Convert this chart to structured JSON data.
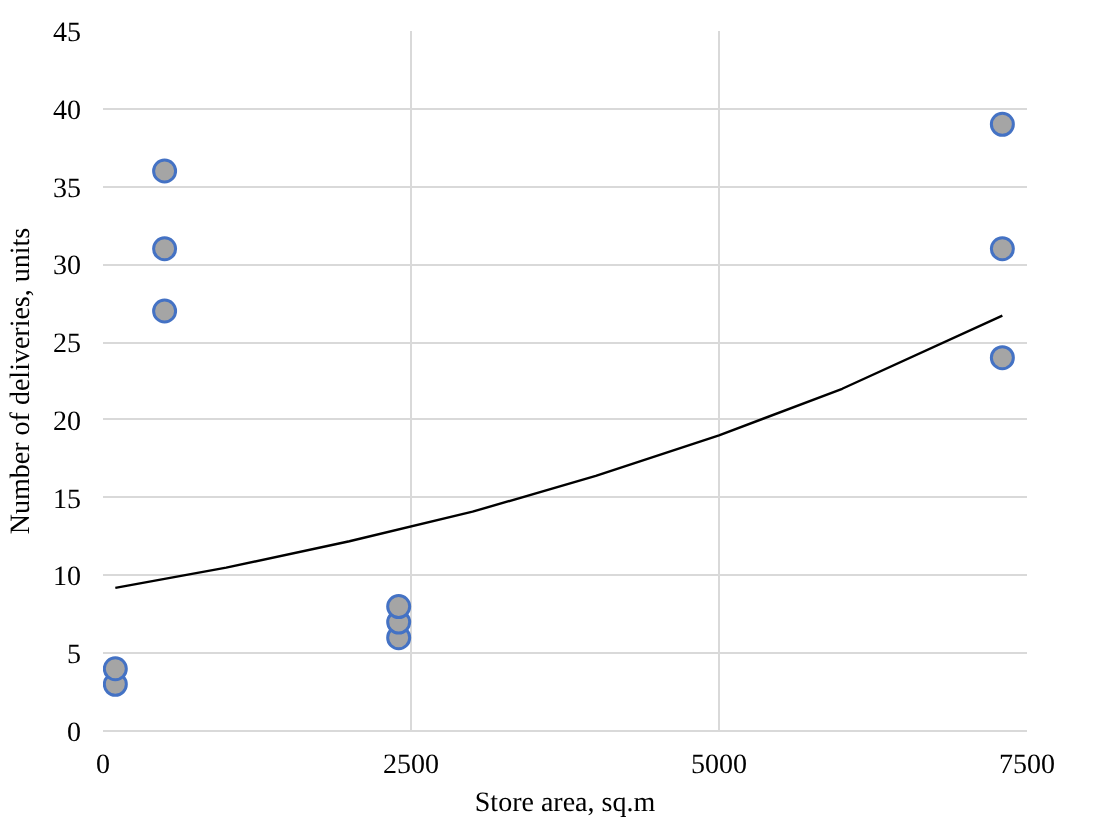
{
  "chart_data": {
    "type": "scatter",
    "xlabel": "Store area, sq.m",
    "ylabel": "Number of deliveries, units",
    "xlim": [
      0,
      7500
    ],
    "xticks": [
      0,
      2500,
      5000,
      7500
    ],
    "ylim": [
      0,
      45
    ],
    "yticks": [
      0,
      5,
      10,
      15,
      20,
      25,
      30,
      35,
      40,
      45
    ],
    "grid": true,
    "series": [
      {
        "marker": "circle",
        "color": "#a5a5a5",
        "x": [
          100,
          100,
          500,
          500,
          500,
          2400,
          2400,
          2400,
          7300,
          7300,
          7300
        ],
        "values": [
          3,
          4,
          27,
          31,
          36,
          6,
          7,
          8,
          24,
          31,
          39
        ]
      },
      {
        "type": "line",
        "color": "#000000",
        "x": [
          100,
          1000,
          2000,
          3000,
          4000,
          5000,
          6000,
          7300
        ],
        "values": [
          9.2,
          10.5,
          12.2,
          14.1,
          16.4,
          19.0,
          22.0,
          26.7
        ]
      }
    ]
  }
}
